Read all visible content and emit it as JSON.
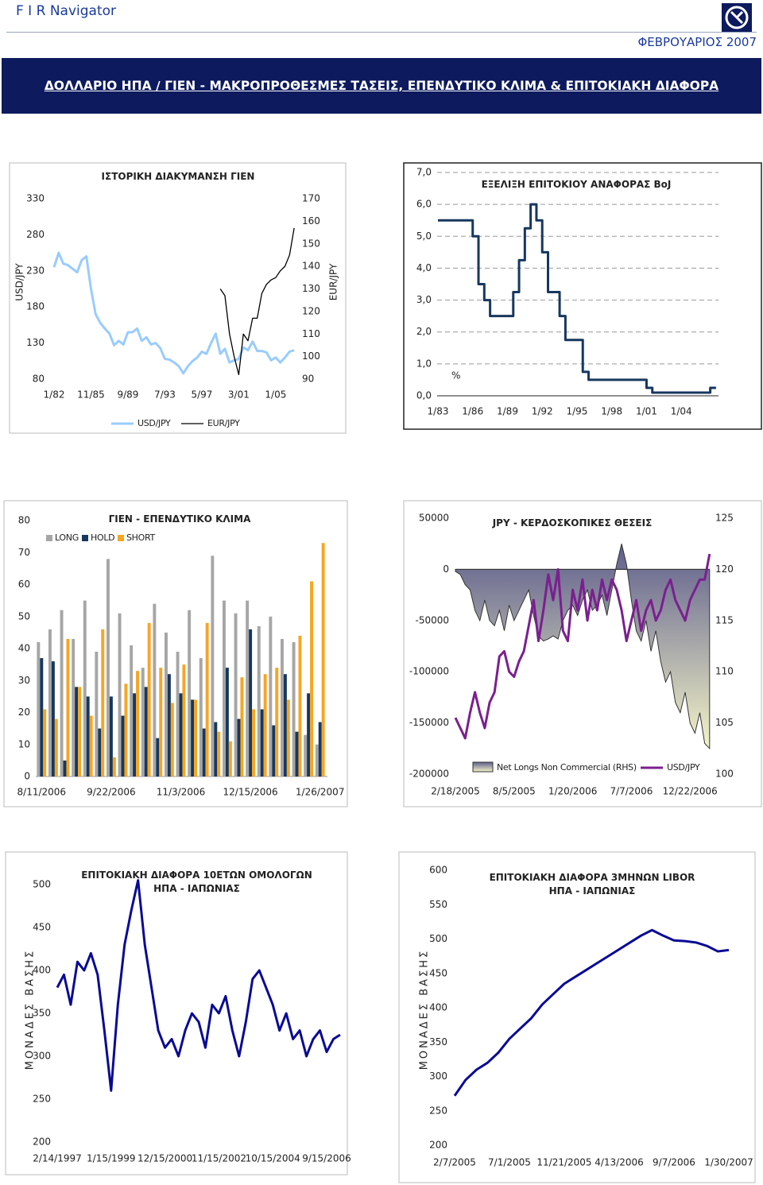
{
  "header": {
    "app": "F I R Navigator",
    "date": "ΦΕΒΡΟΥΑΡΙΟΣ 2007",
    "title": "ΔΟΛΛΑΡΙΟ ΗΠΑ / ΓΙΕΝ - ΜΑΚΡΟΠΡΟΘΕΣΜΕΣ ΤΑΣΕΙΣ, ΕΠΕΝΔΥΤΙΚΟ ΚΛΙΜΑ & ΕΠΙΤΟΚΙΑΚΗ ΔΙΑΦΟΡΑ"
  },
  "chart_data": [
    {
      "type": "line",
      "title": "ΙΣΤΟΡΙΚΗ ΔΙΑΚΥΜΑΝΣΗ ΓΙΕΝ",
      "ylabel": "USD/JPY",
      "y2label": "EUR/JPY",
      "categories": [
        "1/82",
        null,
        null,
        null,
        null,
        null,
        null,
        null,
        "11/85",
        null,
        null,
        null,
        null,
        null,
        null,
        null,
        "9/89",
        null,
        null,
        null,
        null,
        null,
        null,
        null,
        "7/93",
        null,
        null,
        null,
        null,
        null,
        null,
        null,
        "5/97",
        null,
        null,
        null,
        null,
        null,
        null,
        null,
        "3/01",
        null,
        null,
        null,
        null,
        null,
        null,
        null,
        "1/05",
        null,
        null,
        null,
        null
      ],
      "series": [
        {
          "name": "USD/JPY",
          "color": "#99ccff",
          "values": [
            235,
            255,
            240,
            238,
            233,
            228,
            245,
            250,
            205,
            170,
            158,
            150,
            143,
            127,
            133,
            128,
            145,
            145,
            150,
            133,
            138,
            128,
            130,
            123,
            108,
            107,
            103,
            98,
            88,
            98,
            105,
            110,
            118,
            115,
            130,
            143,
            115,
            122,
            103,
            106,
            108,
            124,
            120,
            132,
            119,
            119,
            117,
            106,
            110,
            103,
            110,
            118,
            120
          ]
        },
        {
          "name": "EUR/JPY",
          "color": "#000000",
          "axis": "y2",
          "values": [
            null,
            null,
            null,
            null,
            null,
            null,
            null,
            null,
            null,
            null,
            null,
            null,
            null,
            null,
            null,
            null,
            null,
            null,
            null,
            null,
            null,
            null,
            null,
            null,
            null,
            null,
            null,
            null,
            null,
            null,
            null,
            null,
            null,
            null,
            null,
            null,
            130,
            127,
            110,
            100,
            92,
            110,
            107,
            117,
            117,
            128,
            132,
            134,
            135,
            138,
            140,
            145,
            157
          ]
        }
      ],
      "ylim": [
        80,
        330
      ],
      "yticks": [
        80,
        130,
        180,
        230,
        280,
        330
      ],
      "y2lim": [
        90,
        170
      ],
      "y2ticks": [
        90,
        100,
        110,
        120,
        130,
        140,
        150,
        160,
        170
      ],
      "grid": false
    },
    {
      "type": "line",
      "step": true,
      "title": "ΕΞΕΛΙΞΗ ΕΠΙΤΟΚΙΟΥ ΑΝΑΦΟΡΑΣ BoJ",
      "ylabel": "%",
      "categories": [
        "1/83",
        null,
        null,
        null,
        null,
        null,
        "1/86",
        null,
        null,
        null,
        null,
        null,
        "1/89",
        null,
        null,
        null,
        null,
        null,
        "1/92",
        null,
        null,
        null,
        null,
        null,
        "1/95",
        null,
        null,
        null,
        null,
        null,
        "1/98",
        null,
        null,
        null,
        null,
        null,
        "1/01",
        null,
        null,
        null,
        null,
        null,
        "1/04",
        null,
        null,
        null,
        null,
        null,
        null
      ],
      "series": [
        {
          "name": "BoJ",
          "color": "#17375e",
          "values": [
            5.5,
            5.5,
            5.5,
            5.5,
            5.5,
            5.5,
            5.0,
            3.5,
            3.0,
            2.5,
            2.5,
            2.5,
            2.5,
            3.25,
            4.25,
            5.25,
            6.0,
            5.5,
            4.5,
            3.25,
            3.25,
            2.5,
            1.75,
            1.75,
            1.75,
            0.75,
            0.5,
            0.5,
            0.5,
            0.5,
            0.5,
            0.5,
            0.5,
            0.5,
            0.5,
            0.5,
            0.25,
            0.1,
            0.1,
            0.1,
            0.1,
            0.1,
            0.1,
            0.1,
            0.1,
            0.1,
            0.1,
            0.25,
            0.25
          ]
        }
      ],
      "ylim": [
        0,
        7
      ],
      "yticks": [
        {
          "value": 0,
          "label": "0,0"
        },
        {
          "value": 1,
          "label": "1,0"
        },
        {
          "value": 2,
          "label": "2,0"
        },
        {
          "value": 3,
          "label": "3,0"
        },
        {
          "value": 4,
          "label": "4,0"
        },
        {
          "value": 5,
          "label": "5,0"
        },
        {
          "value": 6,
          "label": "6,0"
        },
        {
          "value": 7,
          "label": "7,0"
        }
      ],
      "grid": true
    },
    {
      "type": "bar",
      "title": "ΓΙΕΝ - ΕΠΕΝΔΥΤΙΚΟ ΚΛΙΜΑ",
      "categories": [
        "8/11/2006",
        null,
        null,
        null,
        null,
        null,
        "9/22/2006",
        null,
        null,
        null,
        null,
        null,
        "11/3/2006",
        null,
        null,
        null,
        null,
        null,
        "12/15/2006",
        null,
        null,
        null,
        null,
        null,
        "1/26/2007"
      ],
      "series": [
        {
          "name": "LONG",
          "color": "#a6a6a6",
          "values": [
            42,
            46,
            52,
            43,
            55,
            39,
            68,
            51,
            41,
            34,
            54,
            45,
            39,
            52,
            37,
            69,
            55,
            51,
            55,
            47,
            50,
            43,
            42,
            13,
            10
          ]
        },
        {
          "name": "HOLD",
          "color": "#17375e",
          "values": [
            37,
            36,
            5,
            28,
            25,
            15,
            25,
            19,
            26,
            28,
            12,
            32,
            26,
            24,
            15,
            17,
            34,
            18,
            46,
            21,
            16,
            32,
            14,
            26,
            17
          ]
        },
        {
          "name": "SHORT",
          "color": "#f5a623",
          "values": [
            21,
            18,
            43,
            28,
            19,
            46,
            6,
            29,
            33,
            48,
            34,
            23,
            35,
            24,
            48,
            14,
            11,
            31,
            21,
            32,
            34,
            24,
            44,
            61,
            73
          ]
        }
      ],
      "ylim": [
        0,
        80
      ],
      "yticks": [
        0,
        10,
        20,
        30,
        40,
        50,
        60,
        70,
        80
      ],
      "grid": false
    },
    {
      "type": "combo",
      "title": "JPY - ΚΕΡΔΟΣΚΟΠΙΚΕΣ ΘΕΣΕΙΣ",
      "categories": [
        "2/18/2005",
        null,
        null,
        null,
        null,
        null,
        null,
        null,
        null,
        null,
        null,
        null,
        "8/5/2005",
        null,
        null,
        null,
        null,
        null,
        null,
        null,
        null,
        null,
        null,
        null,
        "1/20/2006",
        null,
        null,
        null,
        null,
        null,
        null,
        null,
        null,
        null,
        null,
        null,
        "7/7/2006",
        null,
        null,
        null,
        null,
        null,
        null,
        null,
        null,
        null,
        null,
        null,
        "12/22/2006",
        null,
        null,
        null,
        null
      ],
      "series": [
        {
          "name": "Net Longs Non Commercial (RHS)",
          "type": "area",
          "color": "#5e5e8c",
          "values": [
            -2000,
            -5000,
            -15000,
            -20000,
            -40000,
            -50000,
            -30000,
            -50000,
            -55000,
            -40000,
            -60000,
            -35000,
            -50000,
            -40000,
            -30000,
            -20000,
            -45000,
            -65000,
            -70000,
            -68000,
            -65000,
            -68000,
            -50000,
            -40000,
            -35000,
            -45000,
            -30000,
            -20000,
            -40000,
            -35000,
            -25000,
            -45000,
            -20000,
            5000,
            25000,
            5000,
            -30000,
            -60000,
            -70000,
            -50000,
            -80000,
            -60000,
            -90000,
            -110000,
            -100000,
            -130000,
            -140000,
            -120000,
            -150000,
            -160000,
            -140000,
            -170000,
            -175000
          ]
        },
        {
          "name": "USD/JPY",
          "type": "line",
          "axis": "y2",
          "color": "#7b1f8f",
          "values": [
            105.5,
            104.5,
            103.5,
            106,
            108,
            106,
            104.5,
            107,
            108,
            111.5,
            112,
            110,
            109.5,
            111,
            112,
            114.5,
            117,
            113,
            116,
            119.5,
            117,
            120,
            114,
            113,
            118,
            116,
            119,
            115,
            118,
            116,
            119,
            117,
            119,
            118,
            116,
            113,
            115,
            117,
            114,
            116,
            117,
            115,
            116,
            118,
            119,
            117,
            116,
            115,
            117,
            118,
            119,
            119,
            121.5
          ]
        }
      ],
      "ylim": [
        -200000,
        50000
      ],
      "yticks": [
        -200000,
        -150000,
        -100000,
        -50000,
        0,
        50000
      ],
      "y2lim": [
        100,
        125
      ],
      "y2ticks": [
        100,
        105,
        110,
        115,
        120,
        125
      ],
      "grid": false
    },
    {
      "type": "line",
      "title": "ΕΠΙΤΟΚΙΑΚΗ ΔΙΑΦΟΡΑ 10ΕΤΩΝ ΟΜΟΛΟΓΩΝ ΗΠΑ - ΙΑΠΩΝΙΑΣ",
      "ylabel": "ΜΟΝΑΔΕΣ ΒΑΣΗΣ",
      "categories": [
        "2/14/1997",
        null,
        null,
        null,
        null,
        null,
        null,
        null,
        "1/15/1999",
        null,
        null,
        null,
        null,
        null,
        null,
        null,
        "12/15/2000",
        null,
        null,
        null,
        null,
        null,
        null,
        null,
        "11/15/2002",
        null,
        null,
        null,
        null,
        null,
        null,
        null,
        "10/15/2004",
        null,
        null,
        null,
        null,
        null,
        null,
        null,
        "9/15/2006",
        null,
        null
      ],
      "series": [
        {
          "name": "10Y",
          "color": "#0a0a96",
          "values": [
            380,
            395,
            360,
            410,
            400,
            420,
            395,
            330,
            260,
            360,
            430,
            470,
            505,
            430,
            380,
            330,
            310,
            320,
            300,
            330,
            350,
            340,
            310,
            360,
            350,
            370,
            330,
            300,
            340,
            390,
            400,
            380,
            360,
            330,
            350,
            320,
            330,
            300,
            320,
            330,
            305,
            320,
            325
          ]
        }
      ],
      "ylim": [
        200,
        500
      ],
      "yticks": [
        200,
        250,
        300,
        350,
        400,
        450,
        500
      ],
      "grid": false
    },
    {
      "type": "line",
      "title": "ΕΠΙΤΟΚΙΑΚΗ ΔΙΑΦΟΡΑ 3ΜΗΝΩΝ LIBOR ΗΠΑ - ΙΑΠΩΝΙΑΣ",
      "ylabel": "ΜΟΝΑΔΕΣ ΒΑΣΗΣ",
      "categories": [
        "2/7/2005",
        null,
        null,
        null,
        null,
        "7/1/2005",
        null,
        null,
        null,
        null,
        "11/21/2005",
        null,
        null,
        null,
        null,
        "4/13/2006",
        null,
        null,
        null,
        null,
        "9/7/2006",
        null,
        null,
        null,
        null,
        "1/30/2007"
      ],
      "series": [
        {
          "name": "LIBOR 3M",
          "color": "#0a0a96",
          "values": [
            272,
            295,
            310,
            320,
            335,
            355,
            370,
            385,
            405,
            420,
            435,
            445,
            455,
            465,
            475,
            485,
            495,
            505,
            513,
            505,
            498,
            497,
            495,
            490,
            482,
            484
          ]
        }
      ],
      "ylim": [
        200,
        600
      ],
      "yticks": [
        200,
        250,
        300,
        350,
        400,
        450,
        500,
        550,
        600
      ],
      "grid": false
    }
  ]
}
